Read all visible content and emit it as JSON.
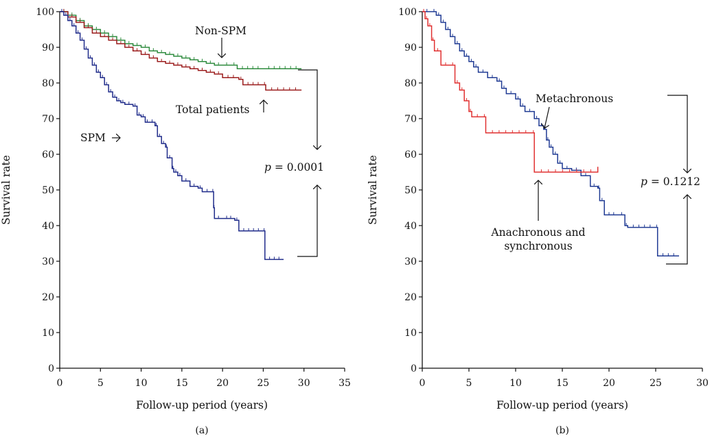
{
  "figure": {
    "panels": [
      {
        "caption": "(a)"
      },
      {
        "caption": "(b)"
      }
    ]
  },
  "chart_data": [
    {
      "type": "line",
      "subtype": "kaplan-meier-step",
      "panel": "(a)",
      "xlabel": "Follow-up period (years)",
      "ylabel": "Survival rate",
      "xlim": [
        0,
        35
      ],
      "ylim": [
        0,
        100
      ],
      "xticks": [
        0,
        5,
        10,
        15,
        20,
        25,
        30,
        35
      ],
      "yticks": [
        0,
        10,
        20,
        30,
        40,
        50,
        60,
        70,
        80,
        90,
        100
      ],
      "grid": false,
      "annotation": {
        "p_symbol": "p",
        "p_text": "= 0.0001"
      },
      "series": [
        {
          "name": "Non-SPM",
          "color": "#2e8b3e",
          "points": [
            [
              0,
              100
            ],
            [
              1,
              99
            ],
            [
              2,
              97.5
            ],
            [
              3,
              96
            ],
            [
              4,
              95
            ],
            [
              5,
              94
            ],
            [
              6,
              93
            ],
            [
              7,
              92
            ],
            [
              8,
              91
            ],
            [
              9,
              90.5
            ],
            [
              10,
              90
            ],
            [
              11,
              89
            ],
            [
              12,
              88.5
            ],
            [
              13,
              88
            ],
            [
              14,
              87.5
            ],
            [
              15,
              87
            ],
            [
              16,
              86.5
            ],
            [
              17,
              86
            ],
            [
              18,
              85.5
            ],
            [
              19,
              85
            ],
            [
              20,
              85
            ],
            [
              21,
              85
            ],
            [
              21.8,
              84
            ],
            [
              25,
              84
            ],
            [
              29.7,
              84
            ]
          ]
        },
        {
          "name": "Total patients",
          "color": "#9b1c1c",
          "points": [
            [
              0,
              100
            ],
            [
              1,
              98.5
            ],
            [
              2,
              97
            ],
            [
              3,
              95.5
            ],
            [
              4,
              94
            ],
            [
              5,
              93
            ],
            [
              6,
              92
            ],
            [
              7,
              91
            ],
            [
              8,
              90
            ],
            [
              9,
              89
            ],
            [
              10,
              88
            ],
            [
              11,
              87
            ],
            [
              12,
              86
            ],
            [
              13,
              85.5
            ],
            [
              14,
              85
            ],
            [
              15,
              84.5
            ],
            [
              16,
              84
            ],
            [
              17,
              83.5
            ],
            [
              18,
              83
            ],
            [
              19,
              82.5
            ],
            [
              20,
              81.5
            ],
            [
              22,
              81
            ],
            [
              22.5,
              79.5
            ],
            [
              25,
              79.5
            ],
            [
              25.3,
              78
            ],
            [
              29.7,
              78
            ]
          ]
        },
        {
          "name": "SPM",
          "color": "#1f2b8a",
          "points": [
            [
              0,
              100
            ],
            [
              0.5,
              99
            ],
            [
              1,
              97.5
            ],
            [
              1.5,
              96
            ],
            [
              2,
              94
            ],
            [
              2.5,
              92
            ],
            [
              3,
              89.5
            ],
            [
              3.5,
              87
            ],
            [
              4,
              85
            ],
            [
              4.5,
              83
            ],
            [
              5,
              81.5
            ],
            [
              5.5,
              79.5
            ],
            [
              6,
              77.5
            ],
            [
              6.5,
              76
            ],
            [
              7,
              75
            ],
            [
              7.5,
              74.5
            ],
            [
              8,
              74
            ],
            [
              9,
              73.5
            ],
            [
              9.5,
              71
            ],
            [
              10,
              70.5
            ],
            [
              10.5,
              69
            ],
            [
              11,
              69
            ],
            [
              11.7,
              68
            ],
            [
              12,
              65
            ],
            [
              12.5,
              63
            ],
            [
              13,
              62
            ],
            [
              13.2,
              59
            ],
            [
              13.8,
              56
            ],
            [
              14,
              55
            ],
            [
              14.5,
              54
            ],
            [
              15,
              52.5
            ],
            [
              16,
              51
            ],
            [
              17,
              50.5
            ],
            [
              17.5,
              49.5
            ],
            [
              18.7,
              49.5
            ],
            [
              18.9,
              45
            ],
            [
              19,
              42
            ],
            [
              20,
              42
            ],
            [
              21.5,
              41.5
            ],
            [
              22,
              38.5
            ],
            [
              25,
              38.5
            ],
            [
              25.2,
              30.5
            ],
            [
              27.5,
              30.5
            ]
          ]
        }
      ],
      "labels": [
        "Non-SPM",
        "Total patients",
        "SPM"
      ]
    },
    {
      "type": "line",
      "subtype": "kaplan-meier-step",
      "panel": "(b)",
      "xlabel": "Follow-up period (years)",
      "ylabel": "Survival rate",
      "xlim": [
        0,
        30
      ],
      "ylim": [
        0,
        100
      ],
      "xticks": [
        0,
        5,
        10,
        15,
        20,
        25,
        30
      ],
      "yticks": [
        0,
        10,
        20,
        30,
        40,
        50,
        60,
        70,
        80,
        90,
        100
      ],
      "grid": false,
      "annotation": {
        "p_symbol": "p",
        "p_text": "= 0.1212"
      },
      "series": [
        {
          "name": "Metachronous",
          "color": "#1f3a93",
          "points": [
            [
              0,
              100
            ],
            [
              1,
              100
            ],
            [
              1.5,
              99
            ],
            [
              2,
              97
            ],
            [
              2.5,
              95
            ],
            [
              3,
              93
            ],
            [
              3.5,
              91
            ],
            [
              4,
              89
            ],
            [
              4.5,
              87.5
            ],
            [
              5,
              86
            ],
            [
              5.5,
              84.5
            ],
            [
              6,
              83
            ],
            [
              7,
              81.5
            ],
            [
              8,
              80.5
            ],
            [
              8.5,
              78.5
            ],
            [
              9,
              77
            ],
            [
              10,
              75.5
            ],
            [
              10.5,
              73.5
            ],
            [
              11,
              72
            ],
            [
              12,
              70
            ],
            [
              12.5,
              68
            ],
            [
              13,
              67
            ],
            [
              13.3,
              64
            ],
            [
              13.6,
              62
            ],
            [
              14,
              60
            ],
            [
              14.5,
              57.5
            ],
            [
              15,
              56
            ],
            [
              16,
              55.5
            ],
            [
              17,
              54
            ],
            [
              18,
              51
            ],
            [
              18.8,
              50.5
            ],
            [
              19,
              47
            ],
            [
              19.5,
              43
            ],
            [
              21,
              43
            ],
            [
              21.7,
              40
            ],
            [
              22,
              39.5
            ],
            [
              25,
              39.5
            ],
            [
              25.2,
              31.5
            ],
            [
              27.5,
              31.5
            ]
          ]
        },
        {
          "name": "Anachronous and synchronous",
          "color": "#e03030",
          "points": [
            [
              0,
              100
            ],
            [
              0.3,
              98
            ],
            [
              0.6,
              96
            ],
            [
              1,
              92
            ],
            [
              1.3,
              89
            ],
            [
              2,
              85
            ],
            [
              3,
              85
            ],
            [
              3.5,
              80
            ],
            [
              4,
              78
            ],
            [
              4.5,
              75
            ],
            [
              5,
              72
            ],
            [
              5.3,
              70.5
            ],
            [
              6.5,
              70.5
            ],
            [
              6.8,
              66
            ],
            [
              11.8,
              66
            ],
            [
              12,
              55
            ],
            [
              18.8,
              55
            ],
            [
              18.8,
              56.5
            ]
          ]
        }
      ],
      "labels": [
        "Metachronous",
        "Anachronous and",
        "synchronous"
      ]
    }
  ]
}
